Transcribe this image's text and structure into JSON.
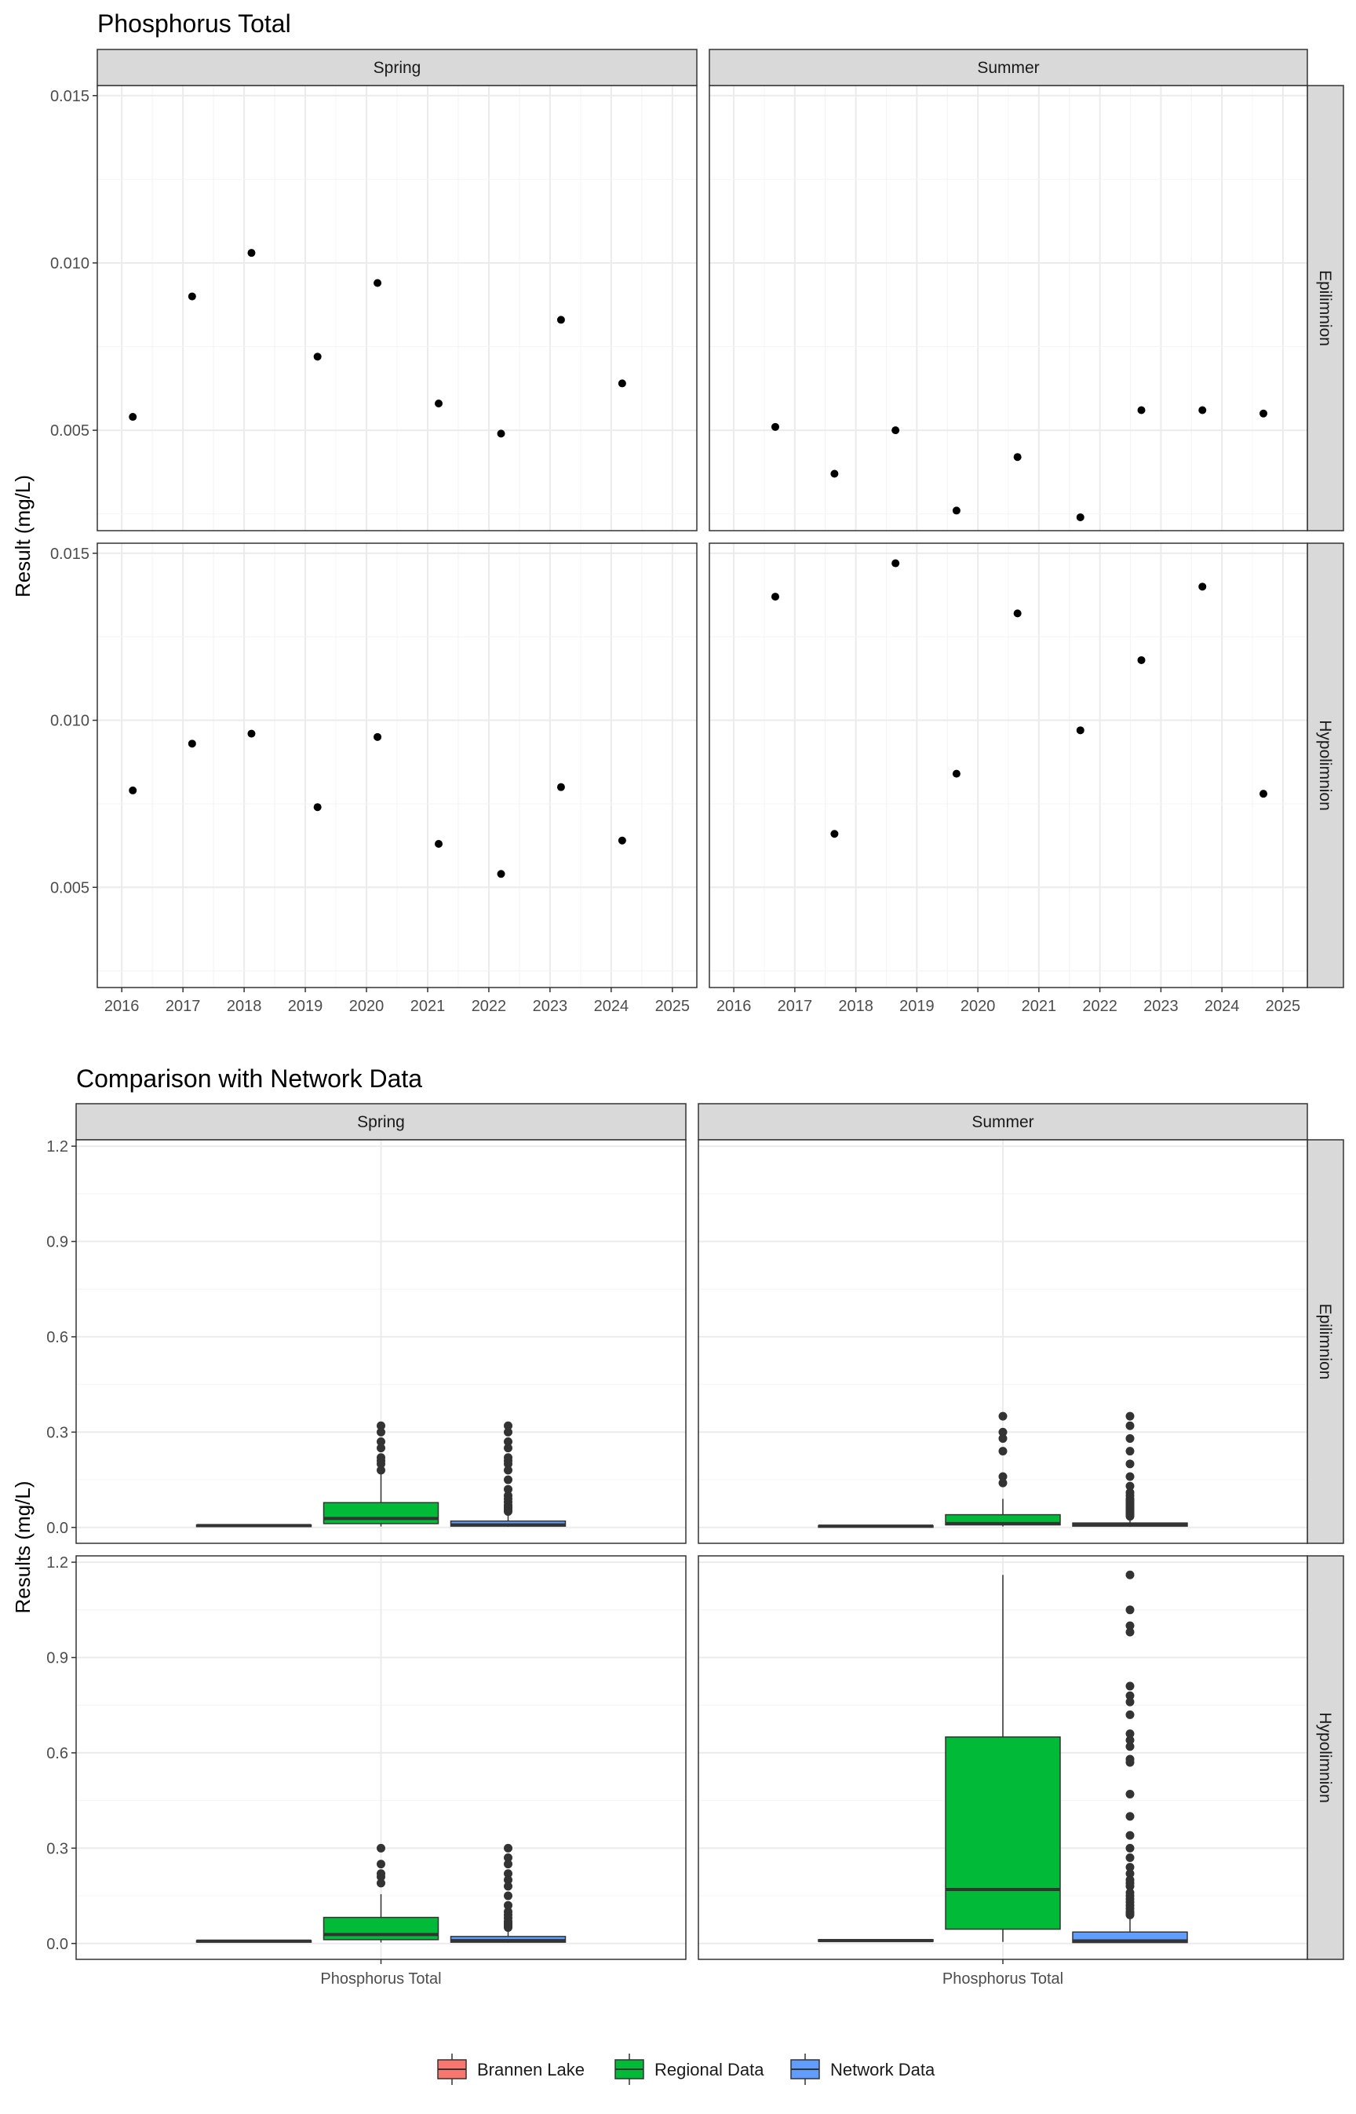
{
  "chart_data": [
    {
      "type": "scatter",
      "title": "Phosphorus Total",
      "xlabel": "",
      "ylabel": "Result (mg/L)",
      "columns": [
        "Spring",
        "Summer"
      ],
      "rows": [
        "Epilimnion",
        "Hypolimnion"
      ],
      "x_ticks": [
        "2016",
        "2017",
        "2018",
        "2019",
        "2020",
        "2021",
        "2022",
        "2023",
        "2024",
        "2025"
      ],
      "y_ticks": [
        "0.005",
        "0.010",
        "0.015"
      ],
      "xlim": [
        2015.6,
        2025.4
      ],
      "ylim": [
        0.002,
        0.0153
      ],
      "grid": true,
      "panels": [
        {
          "column": "Spring",
          "row": "Epilimnion",
          "points": [
            [
              2016.18,
              0.0054
            ],
            [
              2017.15,
              0.009
            ],
            [
              2018.12,
              0.0103
            ],
            [
              2019.2,
              0.0072
            ],
            [
              2020.18,
              0.0094
            ],
            [
              2021.18,
              0.0058
            ],
            [
              2022.2,
              0.0049
            ],
            [
              2023.18,
              0.0083
            ],
            [
              2024.18,
              0.0064
            ]
          ]
        },
        {
          "column": "Summer",
          "row": "Epilimnion",
          "points": [
            [
              2016.68,
              0.0051
            ],
            [
              2017.65,
              0.0037
            ],
            [
              2018.65,
              0.005
            ],
            [
              2019.65,
              0.0026
            ],
            [
              2020.65,
              0.0042
            ],
            [
              2021.68,
              0.0024
            ],
            [
              2022.68,
              0.0056
            ],
            [
              2023.68,
              0.0056
            ],
            [
              2024.68,
              0.0055
            ]
          ]
        },
        {
          "column": "Spring",
          "row": "Hypolimnion",
          "points": [
            [
              2016.18,
              0.0079
            ],
            [
              2017.15,
              0.0093
            ],
            [
              2018.12,
              0.0096
            ],
            [
              2019.2,
              0.0074
            ],
            [
              2020.18,
              0.0095
            ],
            [
              2021.18,
              0.0063
            ],
            [
              2022.2,
              0.0054
            ],
            [
              2023.18,
              0.008
            ],
            [
              2024.18,
              0.0064
            ]
          ]
        },
        {
          "column": "Summer",
          "row": "Hypolimnion",
          "points": [
            [
              2016.68,
              0.0137
            ],
            [
              2017.65,
              0.0066
            ],
            [
              2018.65,
              0.0147
            ],
            [
              2019.65,
              0.0084
            ],
            [
              2020.65,
              0.0132
            ],
            [
              2021.68,
              0.0097
            ],
            [
              2022.68,
              0.0118
            ],
            [
              2023.68,
              0.014
            ],
            [
              2024.68,
              0.0078
            ]
          ]
        }
      ]
    },
    {
      "type": "box",
      "title": "Comparison with Network Data",
      "xlabel": "",
      "ylabel": "Results (mg/L)",
      "columns": [
        "Spring",
        "Summer"
      ],
      "rows": [
        "Epilimnion",
        "Hypolimnion"
      ],
      "category": "Phosphorus Total",
      "y_ticks": [
        "0.0",
        "0.3",
        "0.6",
        "0.9",
        "1.2"
      ],
      "ylim": [
        -0.05,
        1.22
      ],
      "grid": true,
      "legend": {
        "position": "bottom",
        "entries": [
          {
            "name": "Brannen Lake",
            "color": "#F8766D"
          },
          {
            "name": "Regional Data",
            "color": "#00BA38"
          },
          {
            "name": "Network Data",
            "color": "#619CFF"
          }
        ]
      },
      "panels": [
        {
          "column": "Spring",
          "row": "Epilimnion",
          "boxes": [
            {
              "series": "Brannen Lake",
              "q1": 0.0045,
              "median": 0.006,
              "q3": 0.0075,
              "lo": 0.0045,
              "hi": 0.0075,
              "outliers": []
            },
            {
              "series": "Regional Data",
              "q1": 0.012,
              "median": 0.028,
              "q3": 0.078,
              "lo": 0.003,
              "hi": 0.175,
              "outliers": [
                0.32,
                0.3,
                0.27,
                0.25,
                0.22,
                0.21,
                0.2,
                0.18
              ]
            },
            {
              "series": "Network Data",
              "q1": 0.004,
              "median": 0.008,
              "q3": 0.02,
              "lo": 0.002,
              "hi": 0.045,
              "outliers": [
                0.32,
                0.3,
                0.27,
                0.25,
                0.22,
                0.21,
                0.2,
                0.18,
                0.15,
                0.12,
                0.1,
                0.09,
                0.08,
                0.07,
                0.065,
                0.06,
                0.055,
                0.05
              ]
            }
          ]
        },
        {
          "column": "Summer",
          "row": "Epilimnion",
          "boxes": [
            {
              "series": "Brannen Lake",
              "q1": 0.0025,
              "median": 0.004,
              "q3": 0.0055,
              "lo": 0.0025,
              "hi": 0.0055,
              "outliers": []
            },
            {
              "series": "Regional Data",
              "q1": 0.008,
              "median": 0.012,
              "q3": 0.04,
              "lo": 0.003,
              "hi": 0.09,
              "outliers": [
                0.35,
                0.3,
                0.28,
                0.24,
                0.16,
                0.14
              ]
            },
            {
              "series": "Network Data",
              "q1": 0.004,
              "median": 0.008,
              "q3": 0.014,
              "lo": 0.002,
              "hi": 0.028,
              "outliers": [
                0.35,
                0.32,
                0.28,
                0.24,
                0.2,
                0.16,
                0.13,
                0.11,
                0.1,
                0.09,
                0.085,
                0.08,
                0.075,
                0.07,
                0.065,
                0.06,
                0.055,
                0.05,
                0.045,
                0.04,
                0.035
              ]
            }
          ]
        },
        {
          "column": "Spring",
          "row": "Hypolimnion",
          "boxes": [
            {
              "series": "Brannen Lake",
              "q1": 0.006,
              "median": 0.0075,
              "q3": 0.009,
              "lo": 0.0055,
              "hi": 0.0095,
              "outliers": []
            },
            {
              "series": "Regional Data",
              "q1": 0.012,
              "median": 0.028,
              "q3": 0.082,
              "lo": 0.003,
              "hi": 0.155,
              "outliers": [
                0.3,
                0.25,
                0.22,
                0.21,
                0.19
              ]
            },
            {
              "series": "Network Data",
              "q1": 0.004,
              "median": 0.009,
              "q3": 0.022,
              "lo": 0.002,
              "hi": 0.045,
              "outliers": [
                0.3,
                0.27,
                0.25,
                0.22,
                0.2,
                0.18,
                0.15,
                0.12,
                0.1,
                0.09,
                0.08,
                0.07,
                0.065,
                0.06,
                0.055,
                0.05
              ]
            }
          ]
        },
        {
          "column": "Summer",
          "row": "Hypolimnion",
          "boxes": [
            {
              "series": "Brannen Lake",
              "q1": 0.0065,
              "median": 0.009,
              "q3": 0.012,
              "lo": 0.0065,
              "hi": 0.012,
              "outliers": []
            },
            {
              "series": "Regional Data",
              "q1": 0.045,
              "median": 0.17,
              "q3": 0.65,
              "lo": 0.005,
              "hi": 1.16,
              "outliers": []
            },
            {
              "series": "Network Data",
              "q1": 0.003,
              "median": 0.008,
              "q3": 0.036,
              "lo": 0.002,
              "hi": 0.088,
              "outliers": [
                1.16,
                1.05,
                1.0,
                0.98,
                0.81,
                0.78,
                0.76,
                0.72,
                0.66,
                0.64,
                0.62,
                0.58,
                0.57,
                0.47,
                0.4,
                0.34,
                0.3,
                0.27,
                0.24,
                0.22,
                0.2,
                0.19,
                0.18,
                0.16,
                0.15,
                0.14,
                0.13,
                0.12,
                0.11,
                0.1,
                0.095,
                0.09
              ]
            }
          ]
        }
      ]
    }
  ]
}
